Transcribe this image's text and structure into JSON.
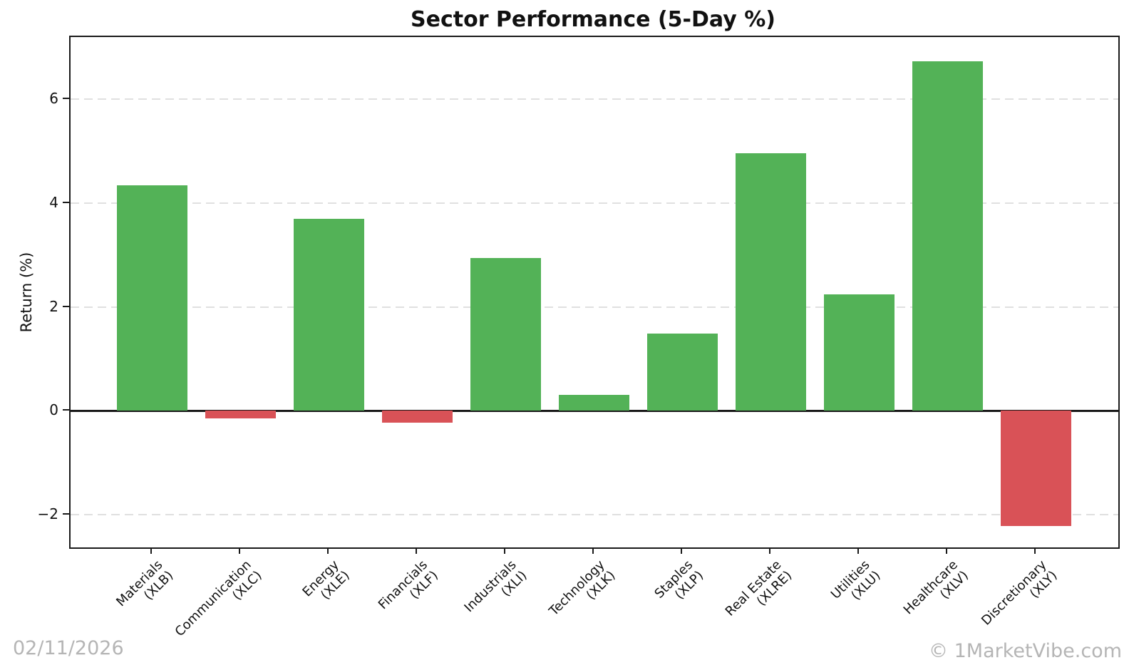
{
  "chart_data": {
    "type": "bar",
    "title": "Sector Performance (5-Day %)",
    "ylabel": "Return (%)",
    "xlabel": "",
    "categories": [
      "Materials",
      "Communication",
      "Energy",
      "Financials",
      "Industrials",
      "Technology",
      "Staples",
      "Real Estate",
      "Utilities",
      "Healthcare",
      "Discretionary"
    ],
    "tickers": [
      "(XLB)",
      "(XLC)",
      "(XLE)",
      "(XLF)",
      "(XLI)",
      "(XLK)",
      "(XLP)",
      "(XLRE)",
      "(XLU)",
      "(XLV)",
      "(XLY)"
    ],
    "values": [
      4.35,
      -0.14,
      3.7,
      -0.23,
      2.95,
      0.31,
      1.49,
      4.96,
      2.24,
      6.73,
      -2.22
    ],
    "yticks": [
      6,
      4,
      2,
      0,
      -2
    ],
    "ylim": [
      -2.63,
      7.2
    ],
    "grid": "horizontal-dashed",
    "legend": "none",
    "positive_color": "#53b257",
    "negative_color": "#d95257",
    "gridline_color": "#e0e0e0",
    "axis_color": "#1a1a1a"
  },
  "footer": {
    "date": "02/11/2026",
    "watermark": "© 1MarketVibe.com"
  }
}
